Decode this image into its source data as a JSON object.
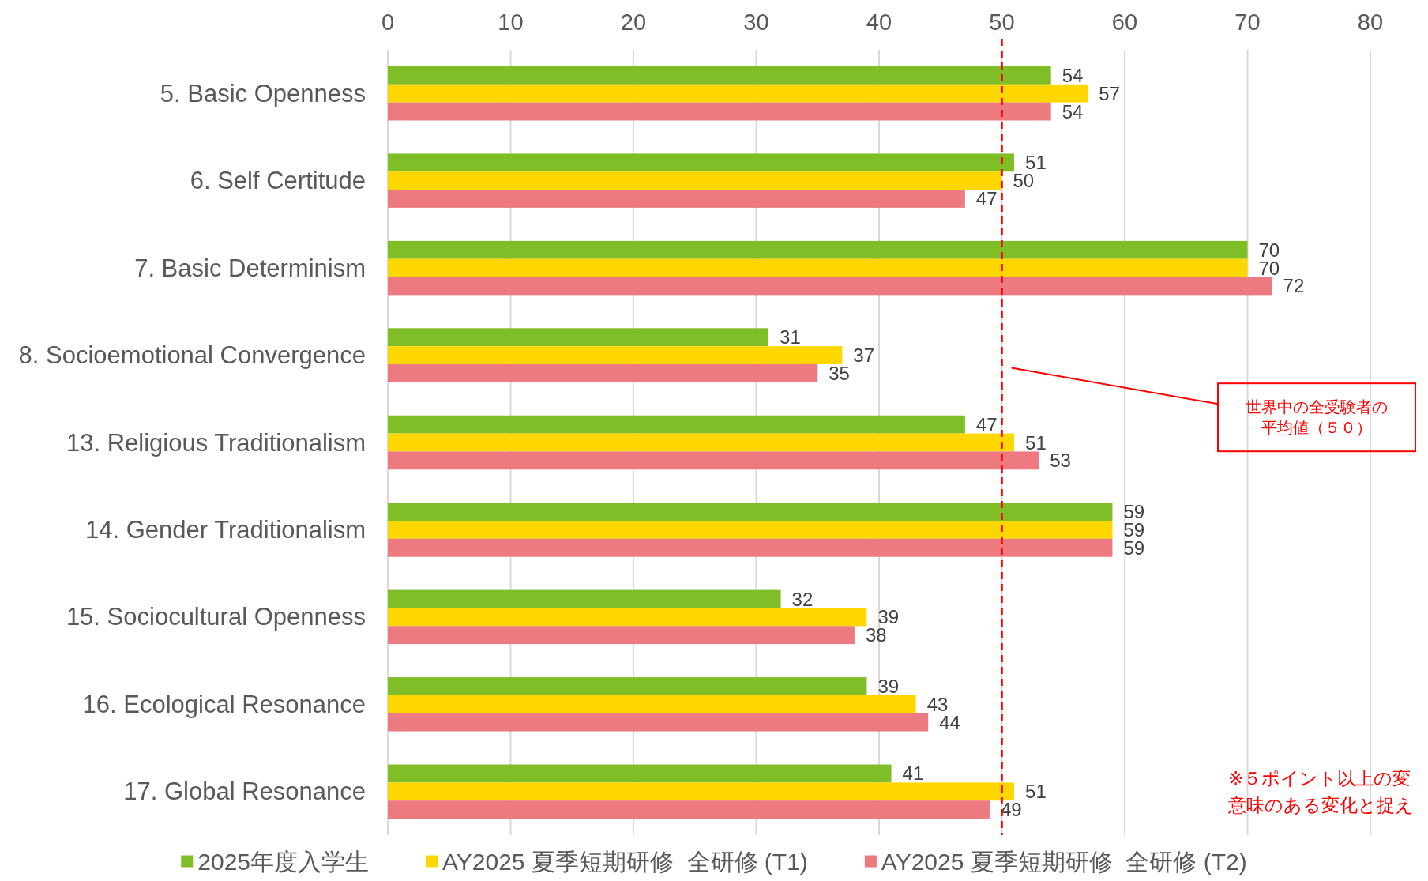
{
  "chart_data": {
    "type": "bar",
    "orientation": "horizontal",
    "categories": [
      "5. Basic Openness",
      "6. Self Certitude",
      "7. Basic Determinism",
      "8. Socioemotional Convergence",
      "13. Religious Traditionalism",
      "14. Gender Traditionalism",
      "15. Sociocultural Openness",
      "16. Ecological Resonance",
      "17. Global Resonance"
    ],
    "series": [
      {
        "name": "2025年度入学生",
        "color": "#80be28",
        "values": [
          54,
          51,
          70,
          31,
          47,
          59,
          32,
          39,
          41
        ]
      },
      {
        "name": "AY2025 夏季短期研修  全研修 (T1)",
        "color": "#ffd700",
        "values": [
          57,
          50,
          70,
          37,
          51,
          59,
          39,
          43,
          51
        ]
      },
      {
        "name": "AY2025 夏季短期研修  全研修 (T2)",
        "color": "#ec7a80",
        "values": [
          54,
          47,
          72,
          35,
          53,
          59,
          38,
          44,
          49
        ]
      }
    ],
    "xlim": [
      0,
      80
    ],
    "xticks": [
      0,
      10,
      20,
      30,
      40,
      50,
      60,
      70,
      80
    ],
    "grid": "x",
    "legend": "bottom",
    "data_labels": true,
    "ref_lines": [
      {
        "axis": "x",
        "value": 50,
        "label": "世界中の全受験者の平均値（５０）",
        "color": "#ff0000",
        "line_style": "dashed"
      }
    ],
    "annotations": [
      "※５ポイント以上の変",
      "意味のある変化と捉え"
    ]
  }
}
